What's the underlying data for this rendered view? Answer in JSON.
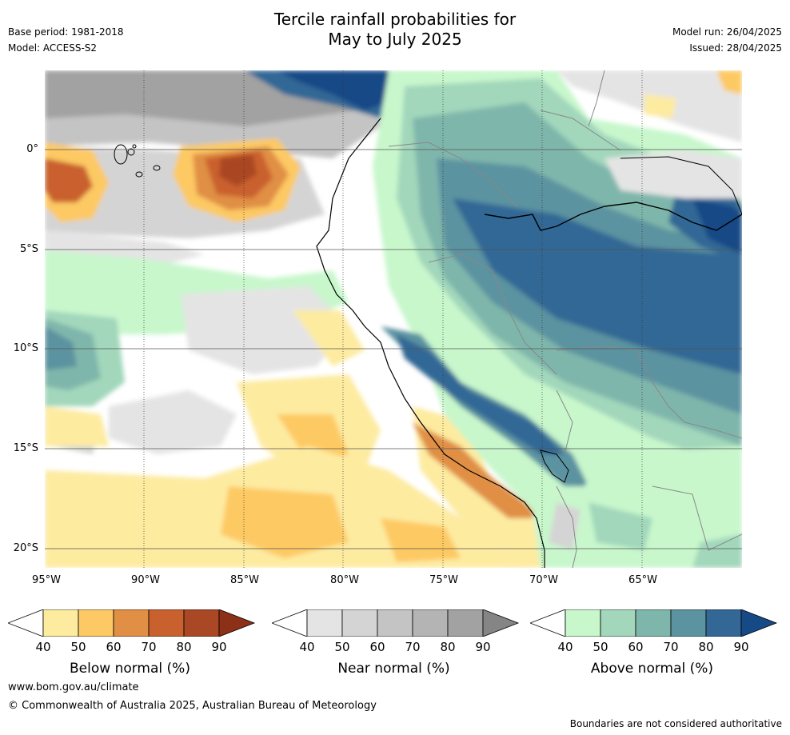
{
  "title_line1": "Tercile rainfall probabilities for",
  "title_line2": "May to July 2025",
  "meta": {
    "base_period": "Base period: 1981-2018",
    "model": "Model: ACCESS-S2",
    "model_run": "Model run: 26/04/2025",
    "issued": "Issued: 28/04/2025"
  },
  "axes": {
    "lat_labels": [
      "0°",
      "5°S",
      "10°S",
      "15°S",
      "20°S"
    ],
    "lon_labels": [
      "95°W",
      "90°W",
      "85°W",
      "80°W",
      "75°W",
      "70°W",
      "65°W"
    ]
  },
  "colorbars": [
    {
      "label": "Below normal (%)",
      "ticks": [
        "40",
        "50",
        "60",
        "70",
        "80",
        "90"
      ],
      "colors": [
        "#fdeba0",
        "#fdc964",
        "#e08f44",
        "#c9612e",
        "#aa4724",
        "#8c3018"
      ]
    },
    {
      "label": "Near normal (%)",
      "ticks": [
        "40",
        "50",
        "60",
        "70",
        "80",
        "90"
      ],
      "colors": [
        "#e4e4e4",
        "#d4d4d4",
        "#c4c4c4",
        "#b4b4b4",
        "#a2a2a2",
        "#858585"
      ]
    },
    {
      "label": "Above normal (%)",
      "ticks": [
        "40",
        "50",
        "60",
        "70",
        "80",
        "90"
      ],
      "colors": [
        "#c8f7cc",
        "#a2d7bb",
        "#7fb6ab",
        "#5c93a0",
        "#336795",
        "#164a86"
      ]
    }
  ],
  "footer": {
    "url": "www.bom.gov.au/climate",
    "copyright": "© Commonwealth of Australia 2025, Australian Bureau of Meteorology",
    "disclaimer": "Boundaries are not considered authoritative"
  }
}
